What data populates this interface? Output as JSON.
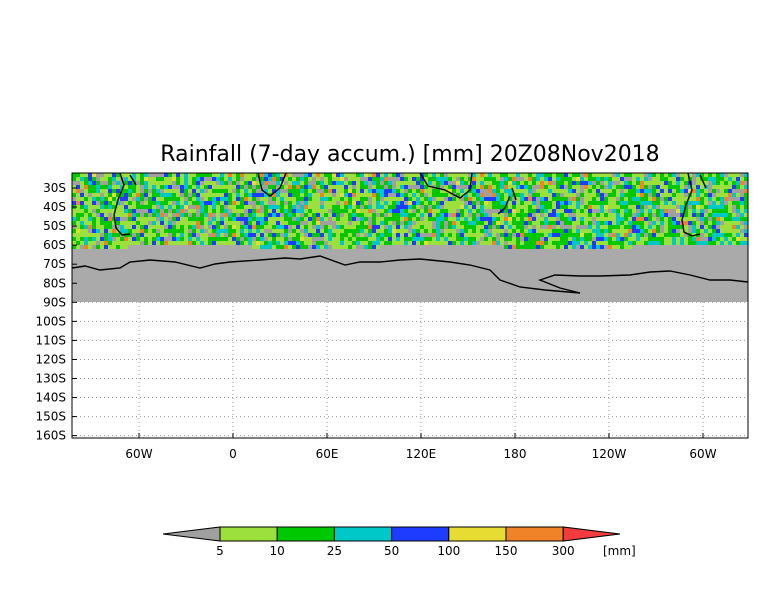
{
  "title": "Rainfall (7-day accum.) [mm] 20Z08Nov2018",
  "y_ticks": [
    "30S",
    "40S",
    "50S",
    "60S",
    "70S",
    "80S",
    "90S",
    "100S",
    "110S",
    "120S",
    "130S",
    "140S",
    "150S",
    "160S"
  ],
  "x_ticks": [
    "60W",
    "0",
    "60E",
    "120E",
    "180",
    "120W",
    "60W"
  ],
  "colorbar": {
    "levels": [
      "5",
      "10",
      "25",
      "50",
      "100",
      "150",
      "300"
    ],
    "unit": "[mm]",
    "colors": [
      "#a0a0a0",
      "#9be03c",
      "#00c800",
      "#00c8c8",
      "#1e3cff",
      "#e6dc32",
      "#f08228",
      "#f03c3c"
    ]
  },
  "colors": {
    "land_mask": "#aaaaaa",
    "grid": "#999999",
    "coast": "#000000"
  },
  "grid": true
}
